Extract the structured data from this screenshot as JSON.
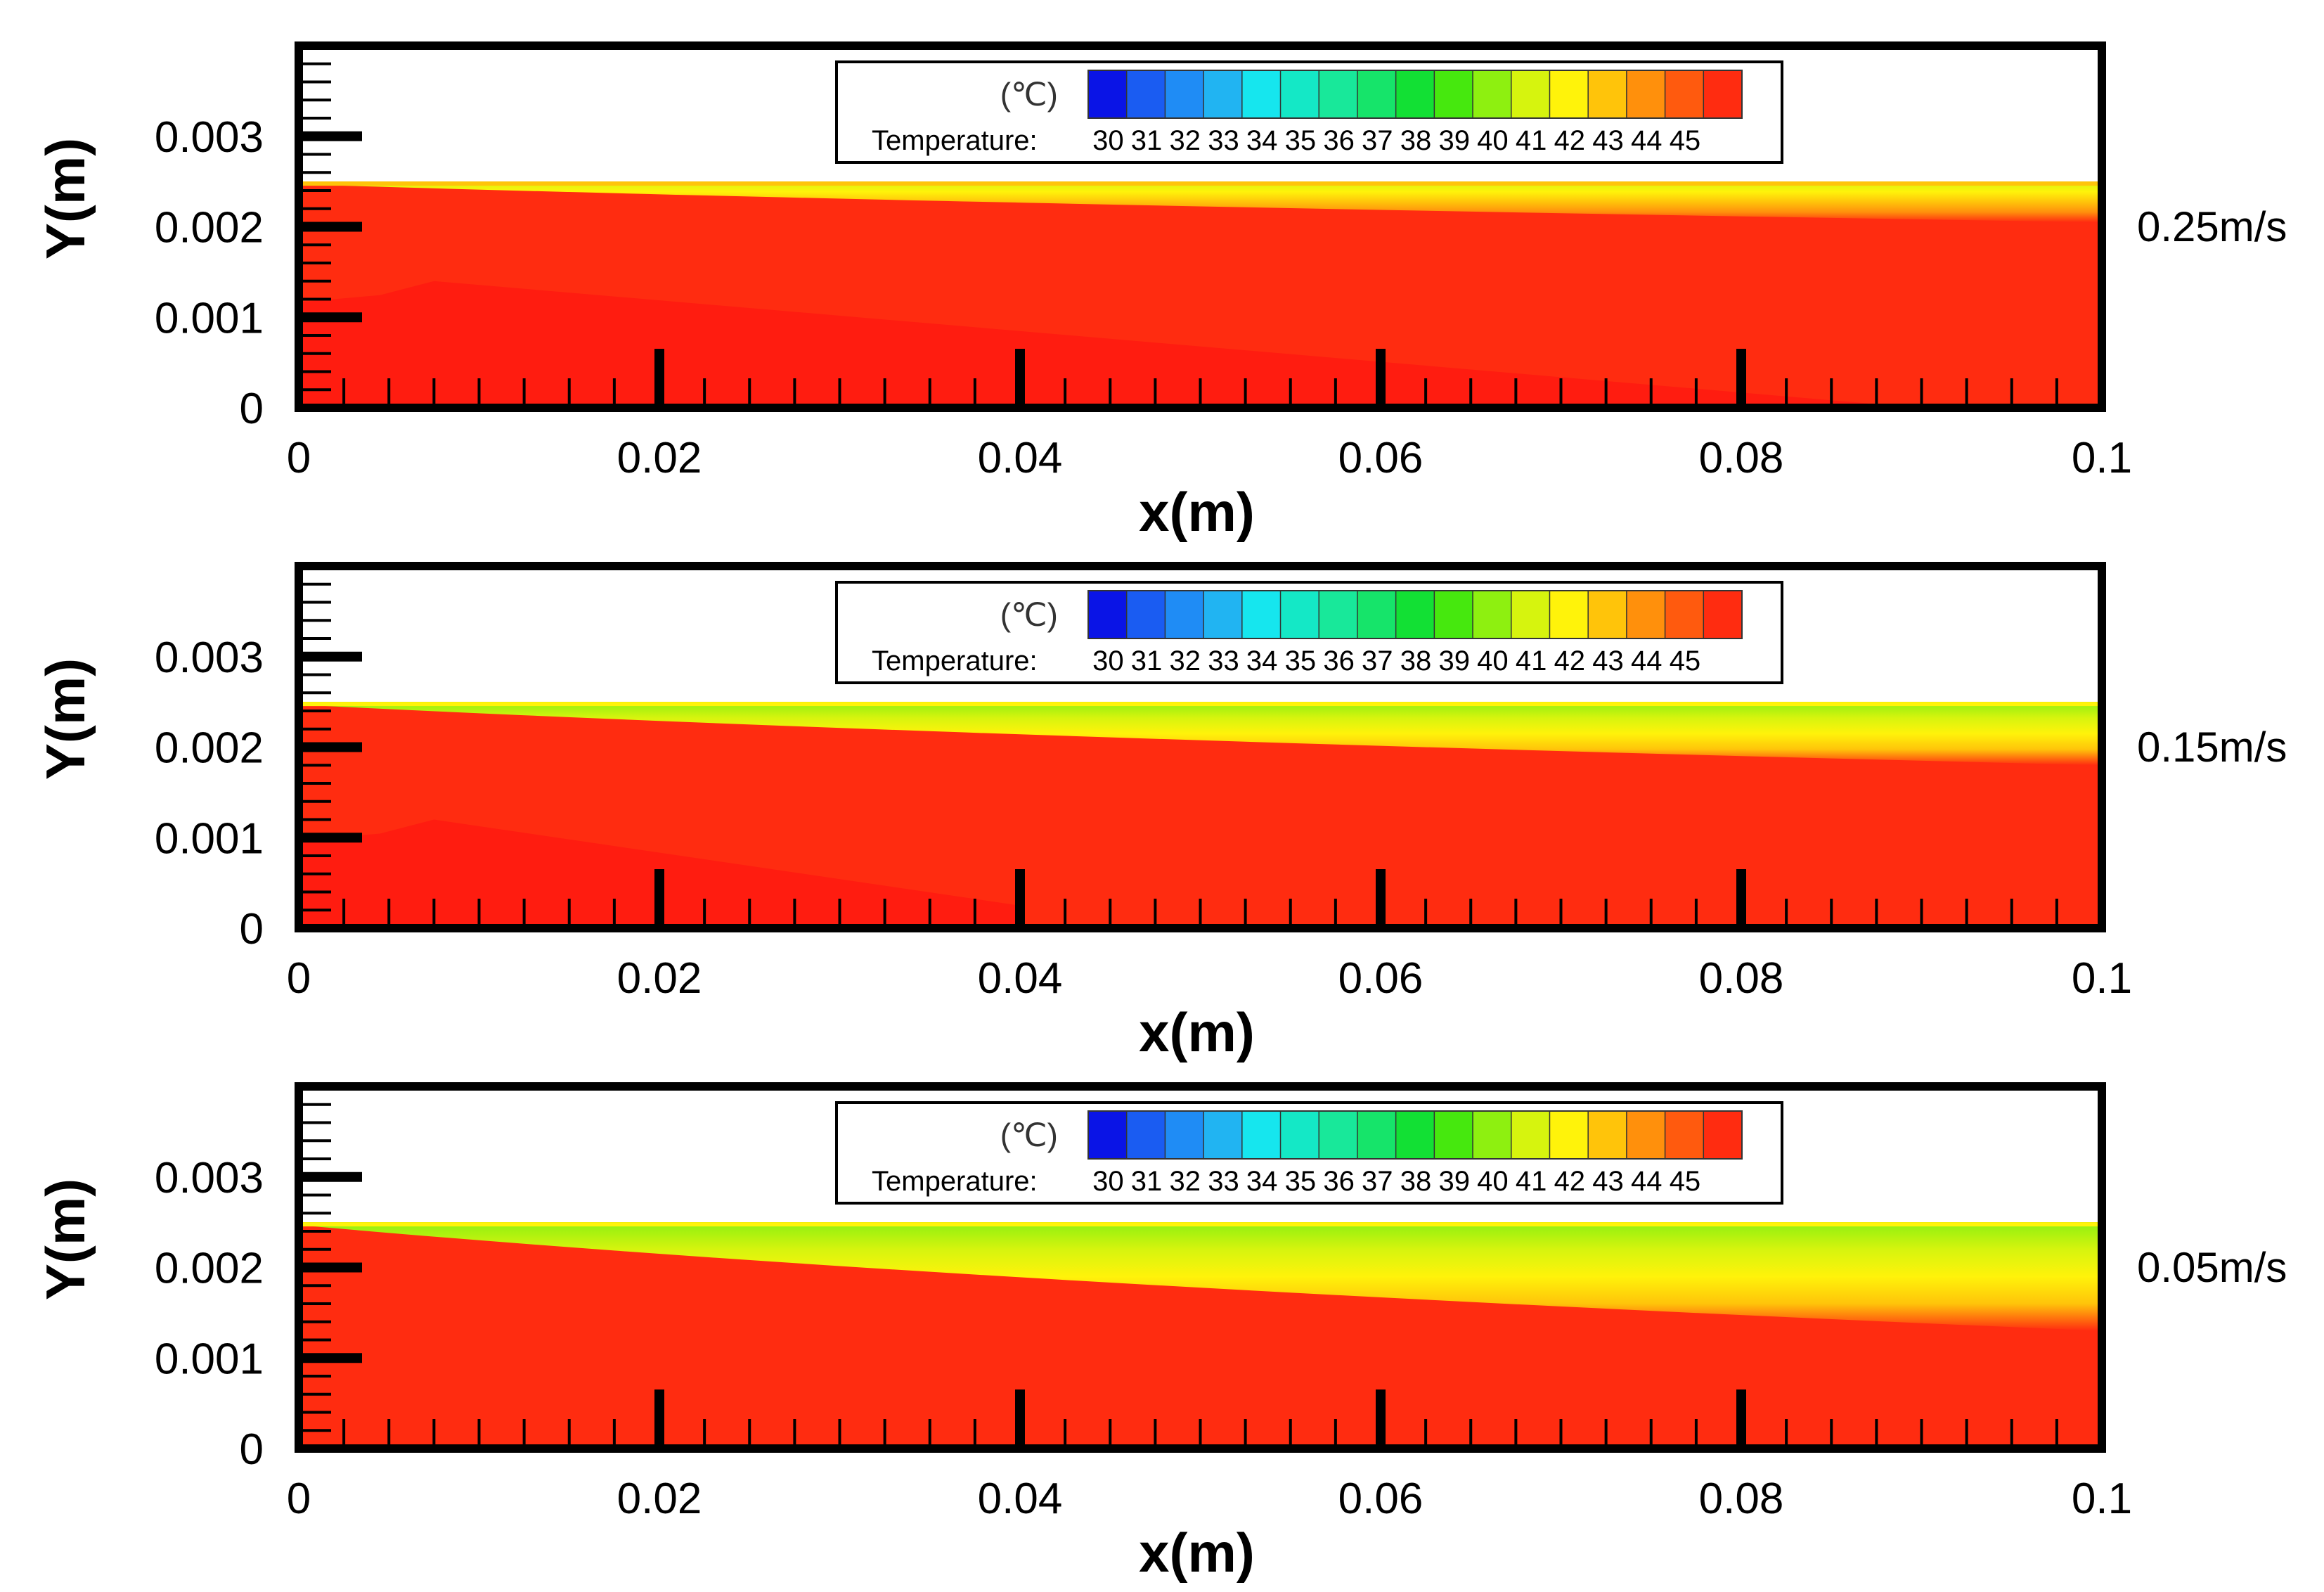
{
  "figure": {
    "colormap": {
      "unit": "(℃)",
      "label": "Temperature:",
      "levels": [
        "30",
        "31",
        "32",
        "33",
        "34",
        "35",
        "36",
        "37",
        "38",
        "39",
        "40",
        "41",
        "42",
        "43",
        "44",
        "45"
      ],
      "colors": [
        "#0a14e6",
        "#1a5cf2",
        "#1f8cf5",
        "#21b4f2",
        "#16e6ee",
        "#14e8c6",
        "#18e89a",
        "#16e46a",
        "#12e034",
        "#46e80e",
        "#8ef010",
        "#d6f40e",
        "#fff30a",
        "#ffc40a",
        "#ff900c",
        "#ff5a0e",
        "#ff2c10"
      ]
    },
    "colors": {
      "field_main": "#ff2c10",
      "field_core": "#ff1a10",
      "frame": "#000000",
      "background": "#ffffff"
    }
  },
  "chart_data": [
    {
      "type": "contour",
      "title": "0.25m/s",
      "xlabel": "x(m)",
      "ylabel": "Y(m)",
      "xlim": [
        0,
        0.1
      ],
      "ylim": [
        0,
        0.004
      ],
      "x_ticks": [
        "0",
        "0.02",
        "0.04",
        "0.06",
        "0.08",
        "0.1"
      ],
      "y_ticks": [
        "0",
        "0.001",
        "0.002",
        "0.003"
      ],
      "field_top_y": 0.0025,
      "cold_layer_thickness_at_outlet": 0.00045,
      "warm_core": [
        [
          0.0075,
          0.0014
        ],
        [
          0.087,
          0.0
        ]
      ],
      "top_edge_temp_outlet": 41
    },
    {
      "type": "contour",
      "title": "0.15m/s",
      "xlabel": "x(m)",
      "ylabel": "Y(m)",
      "xlim": [
        0,
        0.1
      ],
      "ylim": [
        0,
        0.004
      ],
      "x_ticks": [
        "0",
        "0.02",
        "0.04",
        "0.06",
        "0.08",
        "0.1"
      ],
      "y_ticks": [
        "0",
        "0.001",
        "0.002",
        "0.003"
      ],
      "field_top_y": 0.0025,
      "cold_layer_thickness_at_outlet": 0.0007,
      "warm_core": [
        [
          0.0075,
          0.0012
        ],
        [
          0.04,
          0.0002
        ]
      ],
      "top_edge_temp_outlet": 40
    },
    {
      "type": "contour",
      "title": "0.05m/s",
      "xlabel": "x(m)",
      "ylabel": "Y(m)",
      "xlim": [
        0,
        0.1
      ],
      "ylim": [
        0,
        0.004
      ],
      "x_ticks": [
        "0",
        "0.02",
        "0.04",
        "0.06",
        "0.08",
        "0.1"
      ],
      "y_ticks": [
        "0",
        "0.001",
        "0.002",
        "0.003"
      ],
      "field_top_y": 0.0025,
      "cold_layer_thickness_at_outlet": 0.0012,
      "warm_core": [],
      "top_edge_temp_outlet": 40
    }
  ]
}
